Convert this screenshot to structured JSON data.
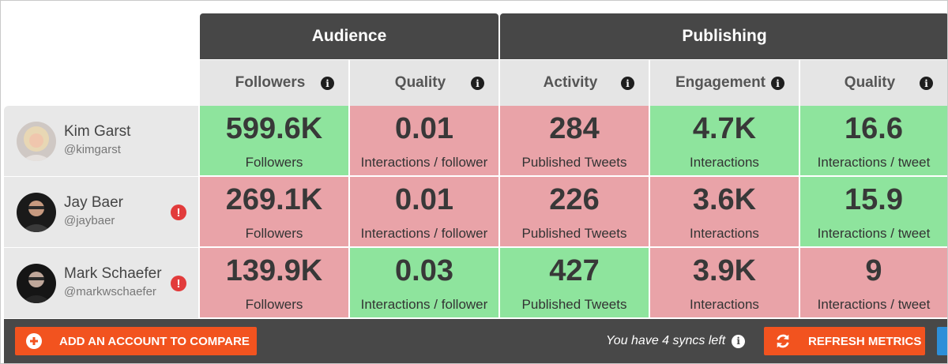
{
  "groups": {
    "audience": "Audience",
    "publishing": "Publishing"
  },
  "columns": [
    {
      "label": "Followers",
      "icon": "info-icon"
    },
    {
      "label": "Quality",
      "icon": "info-icon"
    },
    {
      "label": "Activity",
      "icon": "info-icon"
    },
    {
      "label": "Engagement",
      "icon": "info-icon"
    },
    {
      "label": "Quality",
      "icon": "info-icon"
    }
  ],
  "info_glyph": "i",
  "alert_glyph": "!",
  "profiles": [
    {
      "name": "Kim Garst",
      "handle": "@kimgarst",
      "alert": false,
      "metrics": [
        {
          "value": "599.6K",
          "unit": "Followers",
          "status": "good"
        },
        {
          "value": "0.01",
          "unit": "Interactions / follower",
          "status": "bad"
        },
        {
          "value": "284",
          "unit": "Published Tweets",
          "status": "bad"
        },
        {
          "value": "4.7K",
          "unit": "Interactions",
          "status": "good"
        },
        {
          "value": "16.6",
          "unit": "Interactions / tweet",
          "status": "good"
        }
      ]
    },
    {
      "name": "Jay Baer",
      "handle": "@jaybaer",
      "alert": true,
      "metrics": [
        {
          "value": "269.1K",
          "unit": "Followers",
          "status": "bad"
        },
        {
          "value": "0.01",
          "unit": "Interactions / follower",
          "status": "bad"
        },
        {
          "value": "226",
          "unit": "Published Tweets",
          "status": "bad"
        },
        {
          "value": "3.6K",
          "unit": "Interactions",
          "status": "bad"
        },
        {
          "value": "15.9",
          "unit": "Interactions / tweet",
          "status": "good"
        }
      ]
    },
    {
      "name": "Mark Schaefer",
      "handle": "@markwschaefer",
      "alert": true,
      "metrics": [
        {
          "value": "139.9K",
          "unit": "Followers",
          "status": "bad"
        },
        {
          "value": "0.03",
          "unit": "Interactions / follower",
          "status": "good"
        },
        {
          "value": "427",
          "unit": "Published Tweets",
          "status": "good"
        },
        {
          "value": "3.9K",
          "unit": "Interactions",
          "status": "bad"
        },
        {
          "value": "9",
          "unit": "Interactions / tweet",
          "status": "bad"
        }
      ]
    }
  ],
  "footer": {
    "add_account_label": "ADD AN ACCOUNT TO COMPARE",
    "syncs_text": "You have 4 syncs left",
    "refresh_label": "REFRESH METRICS"
  },
  "colors": {
    "good": "#8ee49d",
    "bad": "#e9a3a8",
    "header_dark": "#474747",
    "accent_orange": "#f2531f",
    "alert_red": "#e23b3b",
    "blue_button": "#2d8fd9"
  }
}
